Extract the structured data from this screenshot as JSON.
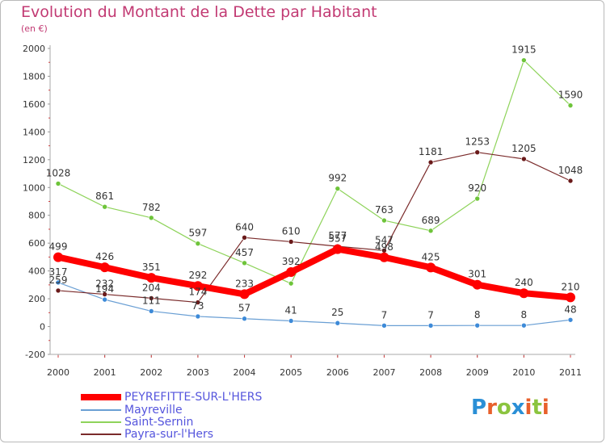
{
  "title": "Evolution du Montant de la Dette par Habitant",
  "subtitle": "(en €)",
  "logo_text": "Proxiti",
  "chart_data": {
    "type": "line",
    "title": "Evolution du Montant de la Dette par Habitant",
    "ylabel": "(en €)",
    "xlabel": "",
    "x": [
      "2000",
      "2001",
      "2002",
      "2003",
      "2004",
      "2005",
      "2006",
      "2007",
      "2008",
      "2009",
      "2010",
      "2011"
    ],
    "ylim": [
      -200,
      2000
    ],
    "yticks": [
      -200,
      0,
      200,
      400,
      600,
      800,
      1000,
      1200,
      1400,
      1600,
      1800,
      2000
    ],
    "grid": false,
    "legend_position": "bottom-left",
    "series": [
      {
        "name": "PEYREFITTE-SUR-L'HERS",
        "color": "#ff0000",
        "values": [
          499,
          426,
          351,
          292,
          233,
          392,
          557,
          498,
          425,
          301,
          240,
          210
        ]
      },
      {
        "name": "Mayreville",
        "color": "#6a9fd4",
        "values": [
          317,
          194,
          111,
          73,
          57,
          41,
          25,
          7,
          7,
          8,
          8,
          48
        ]
      },
      {
        "name": "Saint-Sernin",
        "color": "#8ed35a",
        "values": [
          1028,
          861,
          782,
          597,
          457,
          310,
          992,
          763,
          689,
          920,
          1915,
          1590
        ]
      },
      {
        "name": "Payra-sur-l'Hers",
        "color": "#7a2a2a",
        "values": [
          259,
          232,
          204,
          174,
          640,
          610,
          577,
          547,
          1181,
          1253,
          1205,
          1048
        ]
      }
    ],
    "point_labels": {
      "PEYREFITTE-SUR-L'HERS": [
        "499",
        "426",
        "351",
        "292",
        "233",
        "392",
        "557",
        "498",
        "425",
        "301",
        "240",
        "210"
      ],
      "Mayreville": [
        "317",
        "194",
        "111",
        "73",
        "57",
        "41",
        "25",
        "7",
        "7",
        "8",
        "8",
        "48"
      ],
      "Saint-Sernin": [
        "1028",
        "861",
        "782",
        "597",
        "457",
        "",
        "992",
        "763",
        "689",
        "920",
        "1915",
        "1590"
      ],
      "Payra-sur-l'Hers": [
        "259",
        "232",
        "204",
        "174",
        "640",
        "610",
        "577",
        "547",
        "1181",
        "1253",
        "1205",
        "1048"
      ]
    }
  }
}
